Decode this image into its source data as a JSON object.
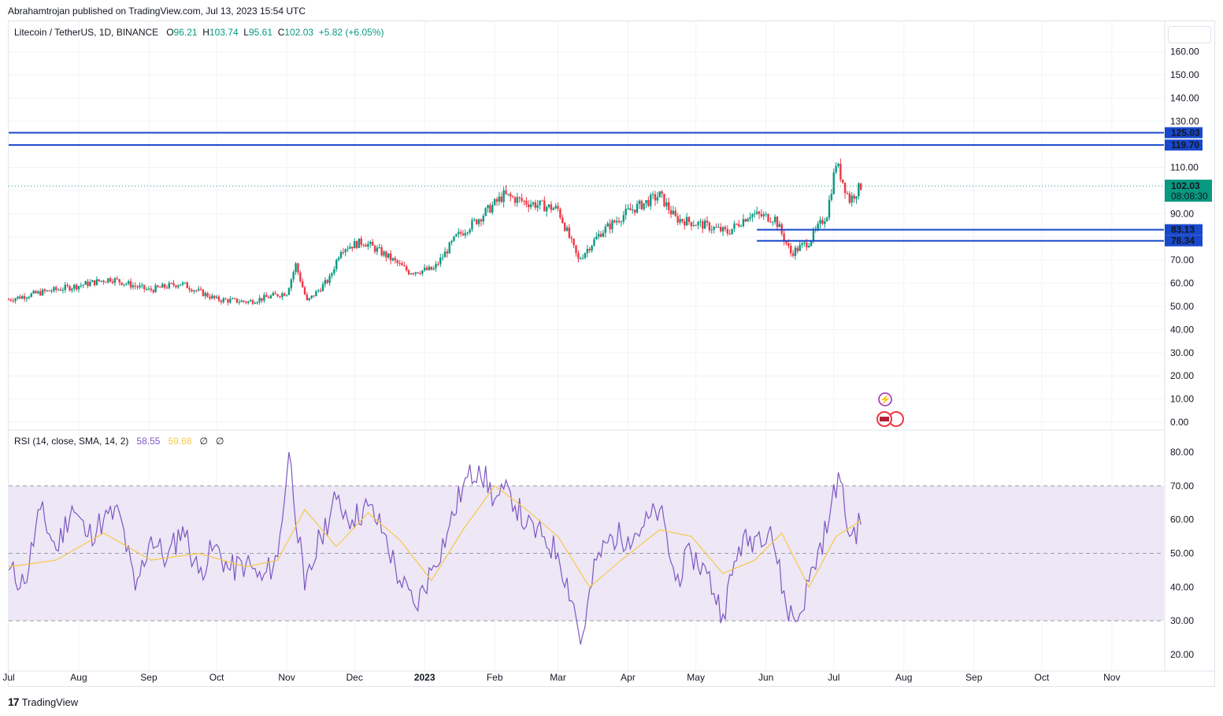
{
  "header": {
    "published_by": "Abrahamtrojan published on TradingView.com, Jul 13, 2023 15:54 UTC"
  },
  "legend": {
    "symbol": "Litecoin / TetherUS, 1D, BINANCE",
    "open_label": "O",
    "open": "96.21",
    "high_label": "H",
    "high": "103.74",
    "low_label": "L",
    "low": "95.61",
    "close_label": "C",
    "close": "102.03",
    "change": "+5.82 (+6.05%)"
  },
  "rsi_legend": {
    "label": "RSI (14, close, SMA, 14, 2)",
    "rsi": "58.55",
    "sma": "59.68",
    "extra1": "∅",
    "extra2": "∅"
  },
  "branding": {
    "logo_text": "TradingView",
    "logo_mark": "17"
  },
  "colors": {
    "up": "#089981",
    "down": "#f23645",
    "level_line": "#1848cc",
    "rsi_line": "#7e57c2",
    "rsi_sma": "#f7c948",
    "rsi_band": "#ede7f6",
    "grid": "#f0f3fa"
  },
  "chart_data": [
    {
      "type": "candlestick",
      "title": "Litecoin / TetherUS, 1D, BINANCE",
      "x_ticks": [
        "Jul",
        "Aug",
        "Sep",
        "Oct",
        "Nov",
        "Dec",
        "2023",
        "Feb",
        "Mar",
        "Apr",
        "May",
        "Jun",
        "Jul",
        "Aug",
        "Sep",
        "Oct",
        "Nov"
      ],
      "y_ticks": [
        "0.00",
        "10.00",
        "20.00",
        "30.00",
        "40.00",
        "50.00",
        "60.00",
        "70.00",
        "80.00",
        "90.00",
        "100.00",
        "110.00",
        "120.00",
        "130.00",
        "140.00",
        "150.00",
        "160.00"
      ],
      "ylim": [
        0,
        165
      ],
      "last_price": {
        "value": 102.03,
        "label": "102.03",
        "countdown": "08:08:30"
      },
      "horizontal_levels": [
        {
          "value": 125.03,
          "label": "125.03",
          "full_width": true
        },
        {
          "value": 119.7,
          "label": "119.70",
          "full_width": true
        },
        {
          "value": 83.13,
          "label": "83.13",
          "full_width": false,
          "from": "2023-05-28"
        },
        {
          "value": 78.34,
          "label": "78.34",
          "full_width": false,
          "from": "2023-05-28"
        }
      ],
      "approximate_closes": [
        {
          "date": "2022-07-01",
          "close": 53
        },
        {
          "date": "2022-07-15",
          "close": 56
        },
        {
          "date": "2022-08-01",
          "close": 59
        },
        {
          "date": "2022-08-15",
          "close": 62
        },
        {
          "date": "2022-09-01",
          "close": 57
        },
        {
          "date": "2022-09-15",
          "close": 60
        },
        {
          "date": "2022-10-01",
          "close": 53
        },
        {
          "date": "2022-10-15",
          "close": 52
        },
        {
          "date": "2022-11-01",
          "close": 56
        },
        {
          "date": "2022-11-05",
          "close": 68
        },
        {
          "date": "2022-11-10",
          "close": 52
        },
        {
          "date": "2022-11-20",
          "close": 62
        },
        {
          "date": "2022-11-25",
          "close": 75
        },
        {
          "date": "2022-12-05",
          "close": 78
        },
        {
          "date": "2022-12-15",
          "close": 72
        },
        {
          "date": "2022-12-25",
          "close": 65
        },
        {
          "date": "2023-01-05",
          "close": 66
        },
        {
          "date": "2023-01-15",
          "close": 80
        },
        {
          "date": "2023-01-25",
          "close": 88
        },
        {
          "date": "2023-02-05",
          "close": 98
        },
        {
          "date": "2023-02-15",
          "close": 95
        },
        {
          "date": "2023-03-01",
          "close": 92
        },
        {
          "date": "2023-03-10",
          "close": 70
        },
        {
          "date": "2023-03-20",
          "close": 82
        },
        {
          "date": "2023-04-01",
          "close": 91
        },
        {
          "date": "2023-04-15",
          "close": 98
        },
        {
          "date": "2023-04-22",
          "close": 88
        },
        {
          "date": "2023-05-05",
          "close": 85
        },
        {
          "date": "2023-05-15",
          "close": 82
        },
        {
          "date": "2023-05-25",
          "close": 90
        },
        {
          "date": "2023-06-05",
          "close": 88
        },
        {
          "date": "2023-06-12",
          "close": 73
        },
        {
          "date": "2023-06-20",
          "close": 78
        },
        {
          "date": "2023-06-28",
          "close": 90
        },
        {
          "date": "2023-07-02",
          "close": 112
        },
        {
          "date": "2023-07-08",
          "close": 96
        },
        {
          "date": "2023-07-13",
          "close": 102.03
        }
      ]
    },
    {
      "type": "line",
      "title": "RSI (14, close, SMA, 14, 2)",
      "y_ticks": [
        "20.00",
        "30.00",
        "40.00",
        "50.00",
        "60.00",
        "70.00",
        "80.00"
      ],
      "ylim": [
        17,
        83
      ],
      "bands": {
        "upper": 70,
        "middle": 50,
        "lower": 30
      },
      "series": [
        {
          "name": "RSI",
          "values": [
            {
              "date": "2022-07-01",
              "v": 45
            },
            {
              "date": "2022-07-08",
              "v": 41
            },
            {
              "date": "2022-07-15",
              "v": 63
            },
            {
              "date": "2022-07-22",
              "v": 51
            },
            {
              "date": "2022-07-29",
              "v": 64
            },
            {
              "date": "2022-08-05",
              "v": 55
            },
            {
              "date": "2022-08-12",
              "v": 60
            },
            {
              "date": "2022-08-19",
              "v": 62
            },
            {
              "date": "2022-08-26",
              "v": 39
            },
            {
              "date": "2022-09-02",
              "v": 55
            },
            {
              "date": "2022-09-09",
              "v": 48
            },
            {
              "date": "2022-09-16",
              "v": 58
            },
            {
              "date": "2022-09-23",
              "v": 44
            },
            {
              "date": "2022-09-30",
              "v": 52
            },
            {
              "date": "2022-10-07",
              "v": 45
            },
            {
              "date": "2022-10-14",
              "v": 47
            },
            {
              "date": "2022-10-21",
              "v": 42
            },
            {
              "date": "2022-10-28",
              "v": 49
            },
            {
              "date": "2022-11-02",
              "v": 80
            },
            {
              "date": "2022-11-09",
              "v": 39
            },
            {
              "date": "2022-11-16",
              "v": 55
            },
            {
              "date": "2022-11-23",
              "v": 66
            },
            {
              "date": "2022-11-30",
              "v": 60
            },
            {
              "date": "2022-12-07",
              "v": 64
            },
            {
              "date": "2022-12-14",
              "v": 56
            },
            {
              "date": "2022-12-21",
              "v": 42
            },
            {
              "date": "2022-12-28",
              "v": 34
            },
            {
              "date": "2023-01-04",
              "v": 45
            },
            {
              "date": "2023-01-11",
              "v": 56
            },
            {
              "date": "2023-01-18",
              "v": 70
            },
            {
              "date": "2023-01-25",
              "v": 76
            },
            {
              "date": "2023-02-01",
              "v": 66
            },
            {
              "date": "2023-02-08",
              "v": 68
            },
            {
              "date": "2023-02-15",
              "v": 58
            },
            {
              "date": "2023-02-22",
              "v": 55
            },
            {
              "date": "2023-03-01",
              "v": 50
            },
            {
              "date": "2023-03-08",
              "v": 35
            },
            {
              "date": "2023-03-11",
              "v": 23
            },
            {
              "date": "2023-03-18",
              "v": 48
            },
            {
              "date": "2023-03-25",
              "v": 55
            },
            {
              "date": "2023-04-01",
              "v": 55
            },
            {
              "date": "2023-04-08",
              "v": 58
            },
            {
              "date": "2023-04-15",
              "v": 63
            },
            {
              "date": "2023-04-22",
              "v": 42
            },
            {
              "date": "2023-04-29",
              "v": 50
            },
            {
              "date": "2023-05-06",
              "v": 44
            },
            {
              "date": "2023-05-13",
              "v": 32
            },
            {
              "date": "2023-05-20",
              "v": 52
            },
            {
              "date": "2023-05-27",
              "v": 55
            },
            {
              "date": "2023-06-03",
              "v": 58
            },
            {
              "date": "2023-06-10",
              "v": 34
            },
            {
              "date": "2023-06-15",
              "v": 30
            },
            {
              "date": "2023-06-22",
              "v": 46
            },
            {
              "date": "2023-06-29",
              "v": 60
            },
            {
              "date": "2023-07-03",
              "v": 74
            },
            {
              "date": "2023-07-08",
              "v": 55
            },
            {
              "date": "2023-07-13",
              "v": 58.55
            }
          ]
        },
        {
          "name": "RSI-based MA",
          "values": [
            {
              "date": "2022-07-01",
              "v": 46
            },
            {
              "date": "2022-07-22",
              "v": 48
            },
            {
              "date": "2022-08-12",
              "v": 56
            },
            {
              "date": "2022-09-02",
              "v": 48
            },
            {
              "date": "2022-09-23",
              "v": 50
            },
            {
              "date": "2022-10-14",
              "v": 46
            },
            {
              "date": "2022-10-28",
              "v": 48
            },
            {
              "date": "2022-11-09",
              "v": 63
            },
            {
              "date": "2022-11-23",
              "v": 52
            },
            {
              "date": "2022-12-07",
              "v": 62
            },
            {
              "date": "2022-12-21",
              "v": 54
            },
            {
              "date": "2023-01-04",
              "v": 42
            },
            {
              "date": "2023-01-18",
              "v": 57
            },
            {
              "date": "2023-02-01",
              "v": 70
            },
            {
              "date": "2023-02-15",
              "v": 63
            },
            {
              "date": "2023-03-01",
              "v": 55
            },
            {
              "date": "2023-03-15",
              "v": 40
            },
            {
              "date": "2023-03-29",
              "v": 48
            },
            {
              "date": "2023-04-15",
              "v": 57
            },
            {
              "date": "2023-04-29",
              "v": 55
            },
            {
              "date": "2023-05-13",
              "v": 44
            },
            {
              "date": "2023-05-27",
              "v": 48
            },
            {
              "date": "2023-06-08",
              "v": 56
            },
            {
              "date": "2023-06-20",
              "v": 40
            },
            {
              "date": "2023-07-02",
              "v": 55
            },
            {
              "date": "2023-07-13",
              "v": 59.68
            }
          ]
        }
      ]
    }
  ]
}
